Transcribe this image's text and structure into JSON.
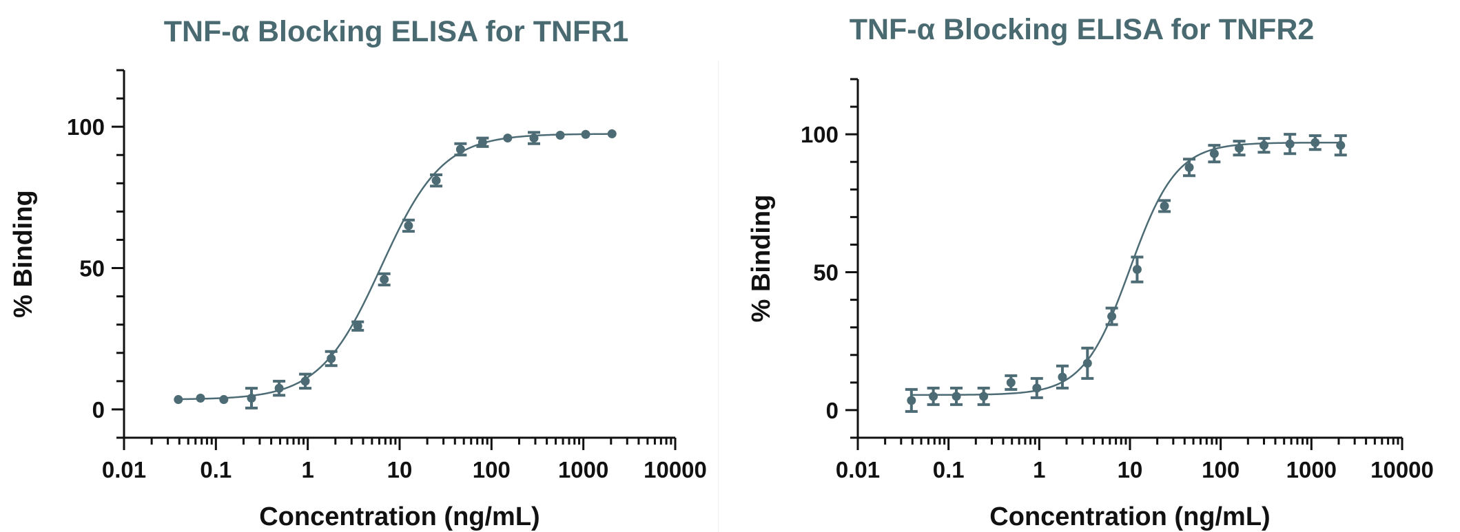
{
  "chart_data": [
    {
      "type": "scatter",
      "title": "TNF-α Blocking ELISA for TNFR1",
      "xlabel": "Concentration (ng/mL)",
      "ylabel": "% Binding",
      "x_scale": "log",
      "xlim": [
        0.01,
        10000
      ],
      "ylim": [
        -10,
        120
      ],
      "x_ticks": [
        "0.01",
        "0.1",
        "1",
        "10",
        "100",
        "1000",
        "10000"
      ],
      "y_ticks": [
        "0",
        "50",
        "100"
      ],
      "colors": {
        "title": "#4a6a72",
        "series": "#4c6b74",
        "axis": "#111111"
      },
      "fit": {
        "bottom": 3.5,
        "top": 97.5,
        "ec50": 6.3,
        "hill": 1.3
      },
      "series": [
        {
          "name": "TNFR1",
          "x": [
            0.039,
            0.068,
            0.122,
            0.244,
            0.488,
            0.94,
            1.8,
            3.5,
            6.8,
            12.5,
            25,
            46,
            80,
            150,
            290,
            560,
            1060,
            2050
          ],
          "y": [
            3.5,
            4,
            3.5,
            4,
            7.5,
            10,
            18,
            29.5,
            46,
            65,
            81,
            92,
            94.5,
            96,
            96,
            97,
            97.3,
            97.5
          ],
          "err": [
            0,
            0,
            0,
            3.5,
            2.5,
            2.5,
            2.5,
            1.5,
            2.0,
            2.0,
            2.0,
            2.0,
            1.5,
            0,
            2.0,
            0,
            0,
            0
          ]
        }
      ]
    },
    {
      "type": "scatter",
      "title": "TNF-α Blocking ELISA for TNFR2",
      "xlabel": "Concentration (ng/mL)",
      "ylabel": "% Binding",
      "x_scale": "log",
      "xlim": [
        0.01,
        10000
      ],
      "ylim": [
        -10,
        120
      ],
      "x_ticks": [
        "0.01",
        "0.1",
        "1",
        "10",
        "100",
        "1000",
        "10000"
      ],
      "y_ticks": [
        "0",
        "50",
        "100"
      ],
      "colors": {
        "title": "#4a6a72",
        "series": "#4c6b74",
        "axis": "#111111"
      },
      "fit": {
        "bottom": 5.5,
        "top": 97,
        "ec50": 10,
        "hill": 1.7
      },
      "series": [
        {
          "name": "TNFR2",
          "x": [
            0.039,
            0.068,
            0.122,
            0.244,
            0.488,
            0.94,
            1.8,
            3.4,
            6.3,
            12,
            24,
            45,
            85,
            160,
            300,
            580,
            1100,
            2100
          ],
          "y": [
            3.5,
            5,
            5,
            5,
            10,
            8,
            12,
            17,
            34,
            51,
            74,
            88,
            93,
            95,
            96,
            96.5,
            97,
            96
          ],
          "err": [
            4,
            3,
            3,
            3,
            2.5,
            3.5,
            4,
            5.5,
            3,
            4.5,
            2,
            3,
            3,
            2.5,
            2.5,
            3.5,
            2.5,
            3.5
          ]
        }
      ]
    }
  ]
}
